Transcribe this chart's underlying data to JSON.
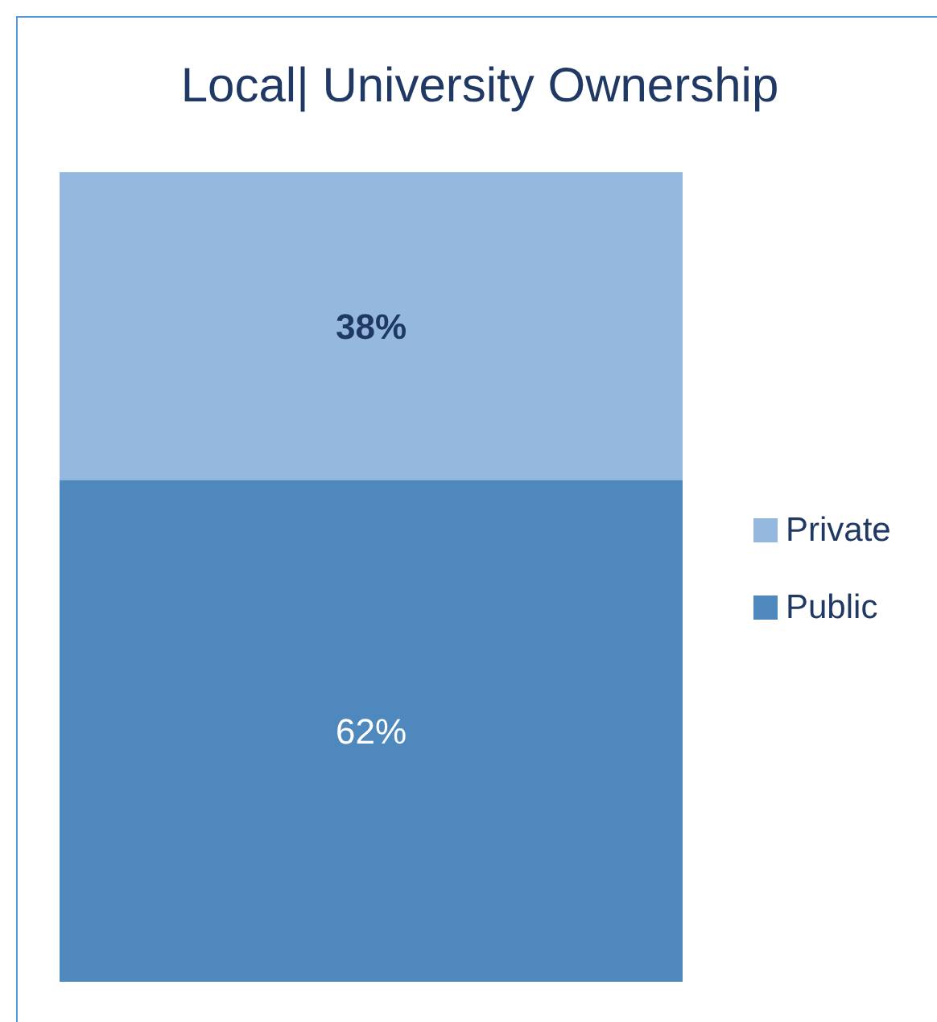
{
  "chart_data": {
    "type": "bar",
    "title": "Local| University Ownership",
    "categories": [
      null
    ],
    "stacked": true,
    "ylim": [
      0,
      100
    ],
    "tick_labels": false,
    "legend": "right",
    "series": [
      {
        "name": "Public",
        "color": "#4f88bc",
        "values": [
          62
        ],
        "value_labels": [
          "62%"
        ]
      },
      {
        "name": "Private",
        "color": "#95b8df",
        "values": [
          38
        ],
        "value_labels": [
          "38%"
        ]
      }
    ]
  }
}
